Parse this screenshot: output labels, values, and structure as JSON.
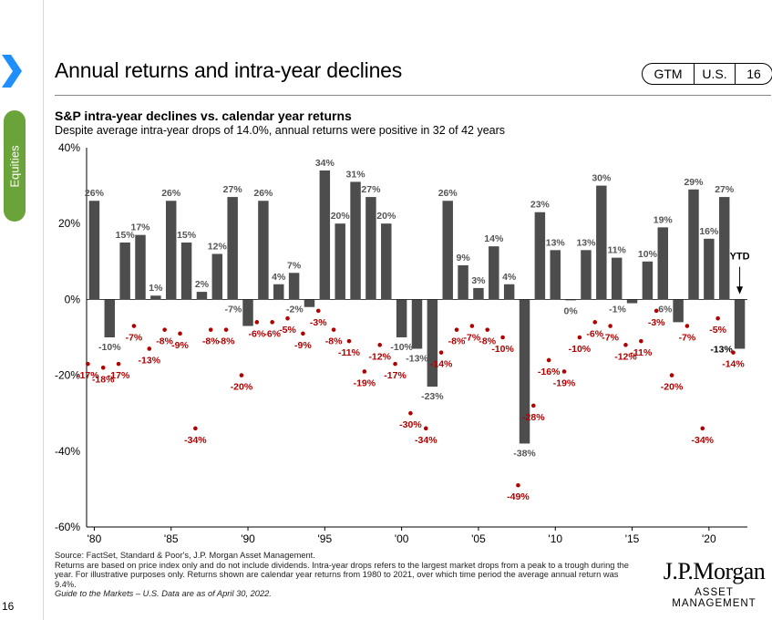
{
  "sidebar": {
    "section": "Equities",
    "page_number": "16"
  },
  "header": {
    "title": "Annual returns and intra-year declines",
    "badges": [
      "GTM",
      "U.S.",
      "16"
    ]
  },
  "subtitle": "S&P intra-year declines vs. calendar year returns",
  "description": "Despite average intra-year drops of 14.0%, annual returns were positive in 32 of 42 years",
  "colors": {
    "bar": "#4d4d4d",
    "drop": "#b00000",
    "accent": "#1f8fff",
    "tab": "#6aa33a"
  },
  "chart_data": {
    "type": "bar",
    "x": [
      1980,
      1981,
      1982,
      1983,
      1984,
      1985,
      1986,
      1987,
      1988,
      1989,
      1990,
      1991,
      1992,
      1993,
      1994,
      1995,
      1996,
      1997,
      1998,
      1999,
      2000,
      2001,
      2002,
      2003,
      2004,
      2005,
      2006,
      2007,
      2008,
      2009,
      2010,
      2011,
      2012,
      2013,
      2014,
      2015,
      2016,
      2017,
      2018,
      2019,
      2020,
      2021,
      2022
    ],
    "series": [
      {
        "values": [
          26,
          -10,
          15,
          17,
          1,
          26,
          15,
          2,
          12,
          27,
          -7,
          26,
          4,
          7,
          -2,
          34,
          20,
          31,
          27,
          20,
          -10,
          -13,
          -23,
          26,
          9,
          3,
          14,
          4,
          -38,
          23,
          13,
          0,
          13,
          30,
          11,
          -1,
          10,
          19,
          -6,
          29,
          16,
          27,
          -13
        ]
      },
      {
        "values": [
          -17,
          -18,
          -17,
          -7,
          -13,
          -8,
          -9,
          -34,
          -8,
          -8,
          -20,
          -6,
          -6,
          -5,
          -9,
          -3,
          -8,
          -11,
          -19,
          -12,
          -17,
          -30,
          -34,
          -14,
          -8,
          -7,
          -8,
          -10,
          -49,
          -28,
          -16,
          -19,
          -10,
          -6,
          -7,
          -12,
          -11,
          -3,
          -20,
          -7,
          -34,
          -5,
          -14
        ]
      }
    ],
    "bar_labels": [
      "26%",
      "-10%",
      "15%",
      "17%",
      "1%",
      "26%",
      "15%",
      "2%",
      "12%",
      "27%",
      "-7%",
      "26%",
      "4%",
      "7%",
      "-2%",
      "34%",
      "20%",
      "31%",
      "27%",
      "20%",
      "-10%",
      "-13%",
      "-23%",
      "26%",
      "9%",
      "3%",
      "14%",
      "4%",
      "-38%",
      "23%",
      "13%",
      "0%",
      "13%",
      "30%",
      "11%",
      "-1%",
      "10%",
      "19%",
      "-6%",
      "29%",
      "16%",
      "27%",
      "-13%"
    ],
    "drop_labels": [
      "-17%",
      "-18%",
      "-17%",
      "-7%",
      "-13%",
      "-8%",
      "-9%",
      "-34%",
      "-8%",
      "-8%",
      "-20%",
      "-6%",
      "-6%",
      "-5%",
      "-9%",
      "-3%",
      "-8%",
      "-11%",
      "-19%",
      "-12%",
      "-17%",
      "-30%",
      "-34%",
      "-14%",
      "-8%",
      "-7%",
      "-8%",
      "-10%",
      "-49%",
      "-28%",
      "-16%",
      "-19%",
      "-10%",
      "-6%",
      "-7%",
      "-12%",
      "-11%",
      "-3%",
      "-20%",
      "-7%",
      "-34%",
      "-5%",
      "-14%"
    ],
    "x_tick_years": [
      1980,
      1985,
      1990,
      1995,
      2000,
      2005,
      2010,
      2015,
      2020
    ],
    "x_tick_labels": [
      "'80",
      "'85",
      "'90",
      "'95",
      "'00",
      "'05",
      "'10",
      "'15",
      "'20"
    ],
    "y_ticks": [
      40,
      20,
      0,
      -20,
      -40,
      -60
    ],
    "y_tick_labels": [
      "40%",
      "20%",
      "0%",
      "-20%",
      "-40%",
      "-60%"
    ],
    "ylim": [
      -60,
      40
    ],
    "annotation": "YTD",
    "grid": false
  },
  "footer": {
    "lines": [
      "Source: FactSet, Standard & Poor's, J.P. Morgan Asset Management.",
      "Returns are based on price index only and do not include dividends. Intra-year drops refers to the largest market drops from a peak to a trough during the year. For illustrative purposes only. Returns shown are calendar year returns from 1980 to 2021, over which time period the average annual return was 9.4%."
    ],
    "guide": "Guide to the Markets – U.S. Data are as of April 30, 2022."
  },
  "logo": {
    "name": "J.P.Morgan",
    "tagline": "ASSET MANAGEMENT"
  }
}
